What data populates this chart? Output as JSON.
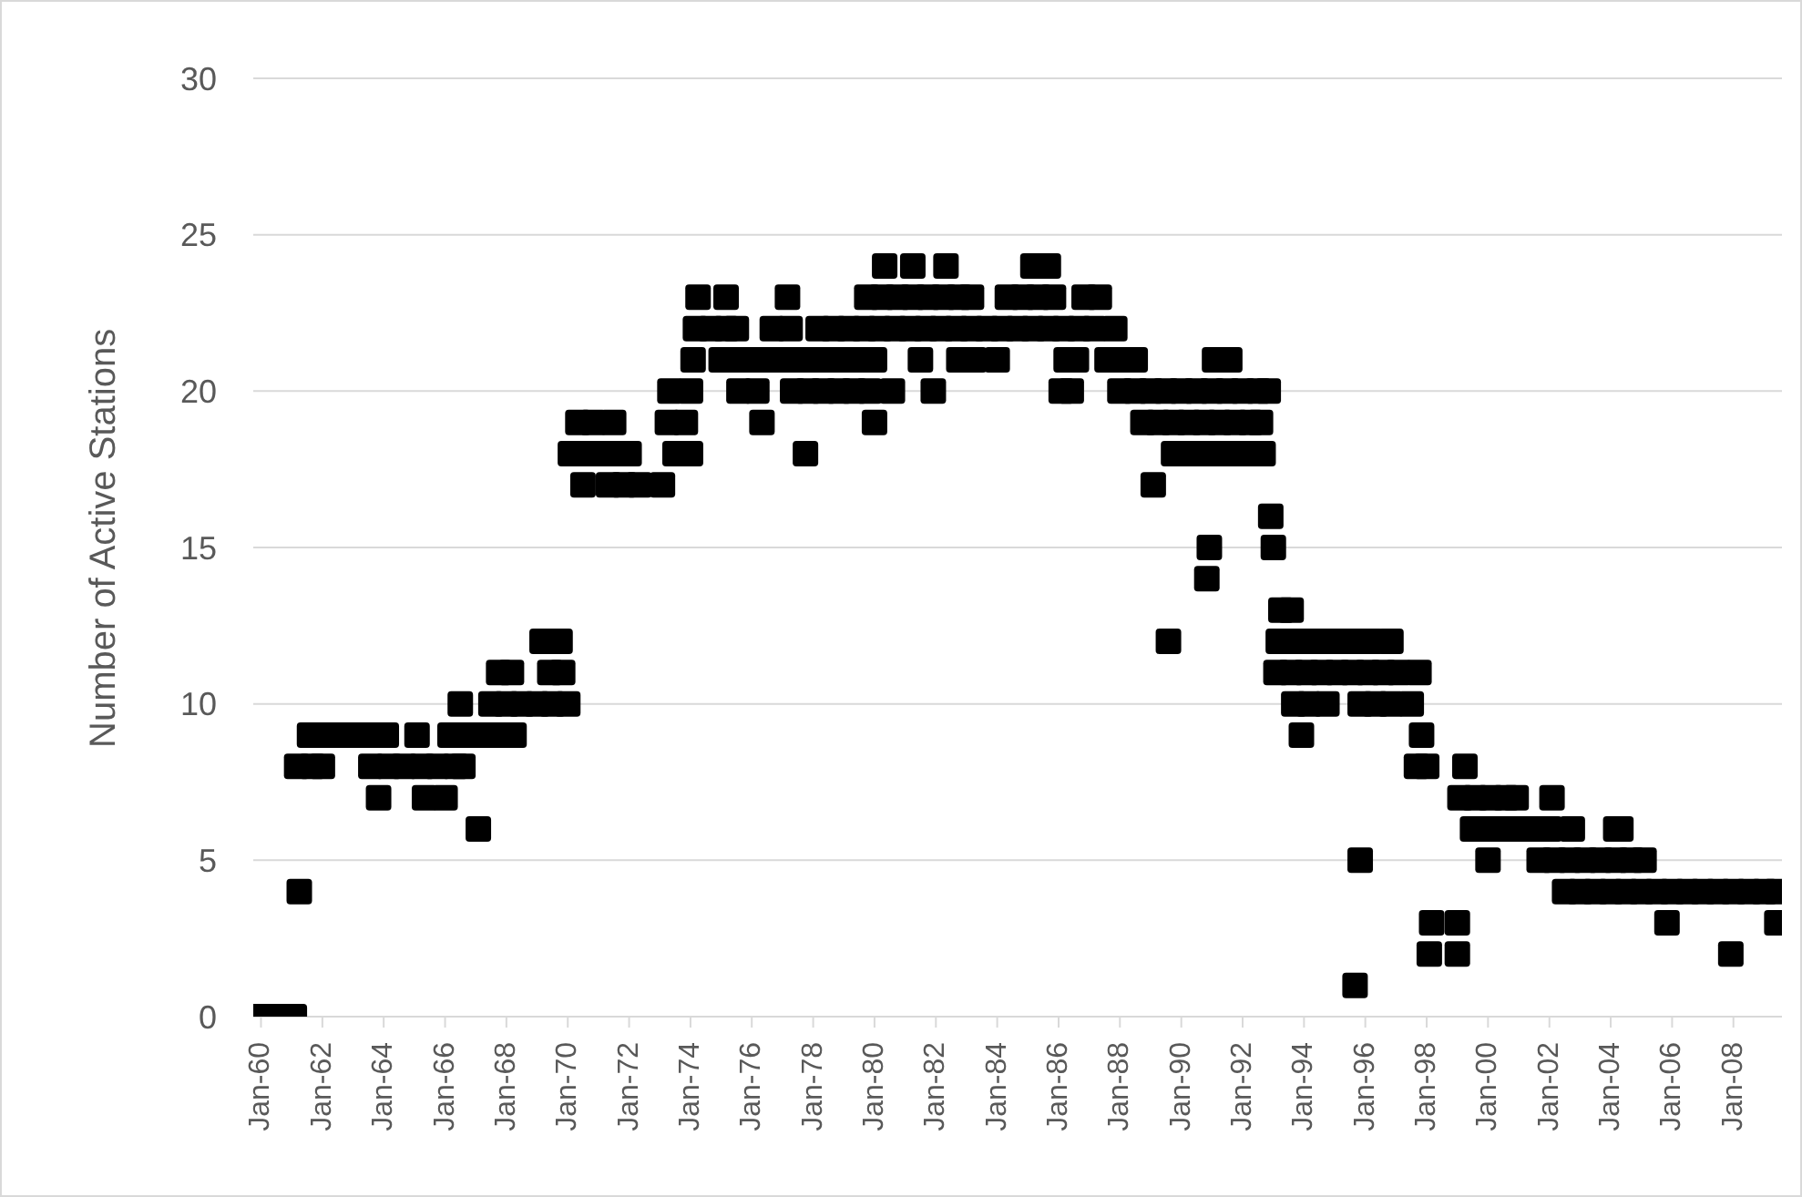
{
  "chart_data": {
    "type": "scatter",
    "ylabel": "Number of Active Stations",
    "color": "#000000",
    "marker": "square",
    "grid": "y",
    "legend": false,
    "xlim": [
      "1959-10",
      "2009-08"
    ],
    "xticks": [
      {
        "value": "1960-01",
        "label": "Jan-60"
      },
      {
        "value": "1962-01",
        "label": "Jan-62"
      },
      {
        "value": "1964-01",
        "label": "Jan-64"
      },
      {
        "value": "1966-01",
        "label": "Jan-66"
      },
      {
        "value": "1968-01",
        "label": "Jan-68"
      },
      {
        "value": "1970-01",
        "label": "Jan-70"
      },
      {
        "value": "1972-01",
        "label": "Jan-72"
      },
      {
        "value": "1974-01",
        "label": "Jan-74"
      },
      {
        "value": "1976-01",
        "label": "Jan-76"
      },
      {
        "value": "1978-01",
        "label": "Jan-78"
      },
      {
        "value": "1980-01",
        "label": "Jan-80"
      },
      {
        "value": "1982-01",
        "label": "Jan-82"
      },
      {
        "value": "1984-01",
        "label": "Jan-84"
      },
      {
        "value": "1986-01",
        "label": "Jan-86"
      },
      {
        "value": "1988-01",
        "label": "Jan-88"
      },
      {
        "value": "1990-01",
        "label": "Jan-90"
      },
      {
        "value": "1992-01",
        "label": "Jan-92"
      },
      {
        "value": "1994-01",
        "label": "Jan-94"
      },
      {
        "value": "1996-01",
        "label": "Jan-96"
      },
      {
        "value": "1998-01",
        "label": "Jan-98"
      },
      {
        "value": "2000-01",
        "label": "Jan-00"
      },
      {
        "value": "2002-01",
        "label": "Jan-02"
      },
      {
        "value": "2004-01",
        "label": "Jan-04"
      },
      {
        "value": "2006-01",
        "label": "Jan-06"
      },
      {
        "value": "2008-01",
        "label": "Jan-08"
      }
    ],
    "ylim": [
      0,
      30
    ],
    "yticks": [
      0,
      5,
      10,
      15,
      20,
      25,
      30
    ],
    "x": [
      "1960-01",
      "1960-07",
      "1961-02",
      "1961-04",
      "1961-03",
      "1961-09",
      "1962-01",
      "1961-08",
      "1962-03",
      "1962-09",
      "1963-03",
      "1963-09",
      "1964-02",
      "1965-02",
      "1966-03",
      "1966-09",
      "1967-03",
      "1967-09",
      "1968-04",
      "1963-08",
      "1964-03",
      "1964-09",
      "1965-04",
      "1965-10",
      "1966-05",
      "1966-08",
      "1963-11",
      "1965-05",
      "1966-01",
      "1967-02",
      "1966-07",
      "1967-07",
      "1968-01",
      "1968-07",
      "1969-01",
      "1969-07",
      "1970-01",
      "1967-10",
      "1968-03",
      "1969-06",
      "1969-11",
      "1969-03",
      "1969-10",
      "1970-02",
      "1970-08",
      "1971-02",
      "1971-08",
      "1972-01",
      "1973-07",
      "1974-01",
      "1977-10",
      "1970-07",
      "1971-05",
      "1971-11",
      "1972-05",
      "1973-02",
      "1970-05",
      "1970-11",
      "1971-07",
      "1973-04",
      "1973-11",
      "1976-05",
      "1980-01",
      "1973-05",
      "1974-01",
      "1975-08",
      "1976-03",
      "1977-05",
      "1977-11",
      "1978-05",
      "1978-11",
      "1979-05",
      "1979-11",
      "1980-08",
      "1981-12",
      "1974-02",
      "1975-01",
      "1975-07",
      "1976-01",
      "1976-07",
      "1977-01",
      "1977-07",
      "1978-01",
      "1978-07",
      "1979-01",
      "1979-07",
      "1980-01",
      "1981-07",
      "1982-10",
      "1983-04",
      "1984-01",
      "1986-04",
      "1986-08",
      "1987-08",
      "1988-02",
      "1988-07",
      "1991-02",
      "1991-08",
      "1974-03",
      "1974-09",
      "1975-03",
      "1975-07",
      "1976-09",
      "1977-04",
      "1978-03",
      "1978-09",
      "1979-03",
      "1979-09",
      "1980-03",
      "1980-09",
      "1981-03",
      "1981-09",
      "1982-03",
      "1982-09",
      "1983-03",
      "1983-09",
      "1984-03",
      "1984-09",
      "1985-03",
      "1985-09",
      "1986-03",
      "1986-09",
      "1987-03",
      "1987-11",
      "1974-04",
      "1975-03",
      "1977-03",
      "1979-10",
      "1980-04",
      "1980-10",
      "1981-04",
      "1981-10",
      "1982-04",
      "1982-10",
      "1983-03",
      "1984-05",
      "1984-11",
      "1985-05",
      "1985-11",
      "1986-11",
      "1987-05",
      "1980-05",
      "1981-04",
      "1982-05",
      "1985-03",
      "1985-09",
      "1986-02",
      "1986-06",
      "1988-01",
      "1988-07",
      "1989-01",
      "1989-07",
      "1990-01",
      "1990-07",
      "1991-01",
      "1991-07",
      "1992-01",
      "1992-07",
      "1992-11",
      "1988-10",
      "1989-04",
      "1989-10",
      "1990-04",
      "1990-10",
      "1991-04",
      "1991-10",
      "1992-04",
      "1992-08",
      "1989-10",
      "1990-04",
      "1990-10",
      "1991-04",
      "1991-10",
      "1992-04",
      "1992-09",
      "1989-02",
      "1992-12",
      "1990-12",
      "1993-01",
      "1990-11",
      "1993-04",
      "1993-08",
      "1989-08",
      "1993-03",
      "1993-09",
      "1994-03",
      "1994-09",
      "1995-03",
      "1995-09",
      "1996-03",
      "1996-11",
      "1993-02",
      "1993-08",
      "1994-02",
      "1994-08",
      "1995-02",
      "1995-08",
      "1996-02",
      "1996-08",
      "1997-02",
      "1997-10",
      "1993-09",
      "1994-03",
      "1994-10",
      "1995-11",
      "1996-05",
      "1996-11",
      "1997-07",
      "1993-12",
      "1997-11",
      "1995-11",
      "1995-09",
      "1997-09",
      "1998-01",
      "1999-04",
      "1999-02",
      "1999-08",
      "2000-02",
      "2000-08",
      "2000-12",
      "2002-02",
      "1999-07",
      "2000-01",
      "2000-07",
      "2001-01",
      "2001-07",
      "2002-01",
      "2002-10",
      "2004-03",
      "2004-05",
      "2000-01",
      "2001-09",
      "2002-03",
      "2002-09",
      "2003-03",
      "2003-09",
      "2004-03",
      "2004-09",
      "2005-02",
      "2002-07",
      "2003-01",
      "2003-07",
      "2004-01",
      "2004-07",
      "2005-01",
      "2005-07",
      "2006-01",
      "2006-07",
      "2007-01",
      "2007-07",
      "2008-01",
      "2008-07",
      "2009-01",
      "2009-06",
      "1998-03",
      "1999-01",
      "2005-11",
      "2009-06",
      "1998-02",
      "1999-01",
      "2007-12"
    ],
    "values": [
      0,
      0,
      0,
      4,
      8,
      8,
      8,
      9,
      9,
      9,
      9,
      9,
      9,
      9,
      9,
      9,
      9,
      9,
      9,
      8,
      8,
      8,
      8,
      8,
      8,
      8,
      7,
      7,
      7,
      6,
      10,
      10,
      10,
      10,
      10,
      10,
      10,
      11,
      11,
      11,
      11,
      12,
      12,
      18,
      18,
      18,
      18,
      18,
      18,
      18,
      18,
      17,
      17,
      17,
      17,
      17,
      19,
      19,
      19,
      19,
      19,
      19,
      19,
      20,
      20,
      20,
      20,
      20,
      20,
      20,
      20,
      20,
      20,
      20,
      20,
      21,
      21,
      21,
      21,
      21,
      21,
      21,
      21,
      21,
      21,
      21,
      21,
      21,
      21,
      21,
      21,
      21,
      21,
      21,
      21,
      21,
      21,
      21,
      22,
      22,
      22,
      22,
      22,
      22,
      22,
      22,
      22,
      22,
      22,
      22,
      22,
      22,
      22,
      22,
      22,
      22,
      22,
      22,
      22,
      22,
      22,
      22,
      22,
      22,
      23,
      23,
      23,
      23,
      23,
      23,
      23,
      23,
      23,
      23,
      23,
      23,
      23,
      23,
      23,
      23,
      23,
      24,
      24,
      24,
      24,
      24,
      20,
      20,
      20,
      20,
      20,
      20,
      20,
      20,
      20,
      20,
      20,
      20,
      20,
      19,
      19,
      19,
      19,
      19,
      19,
      19,
      19,
      19,
      18,
      18,
      18,
      18,
      18,
      18,
      18,
      17,
      16,
      15,
      15,
      14,
      13,
      13,
      12,
      12,
      12,
      12,
      12,
      12,
      12,
      12,
      12,
      11,
      11,
      11,
      11,
      11,
      11,
      11,
      11,
      11,
      11,
      10,
      10,
      10,
      10,
      10,
      10,
      10,
      9,
      9,
      5,
      1,
      8,
      8,
      8,
      7,
      7,
      7,
      7,
      7,
      7,
      6,
      6,
      6,
      6,
      6,
      6,
      6,
      6,
      6,
      5,
      5,
      5,
      5,
      5,
      5,
      5,
      5,
      5,
      4,
      4,
      4,
      4,
      4,
      4,
      4,
      4,
      4,
      4,
      4,
      4,
      4,
      4,
      4,
      3,
      3,
      3,
      3,
      2,
      2,
      2
    ]
  }
}
